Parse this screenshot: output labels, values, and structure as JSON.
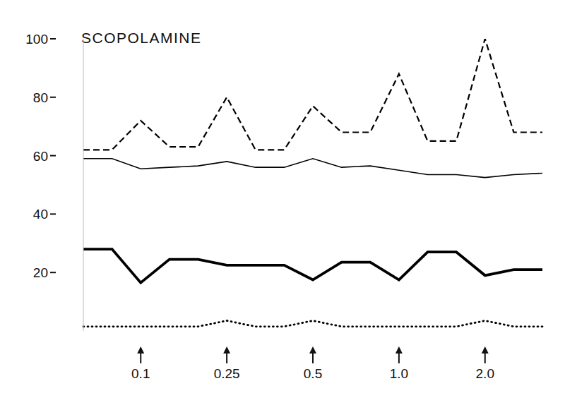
{
  "chart_data": {
    "type": "line",
    "title": "SCOPOLAMINE",
    "categories": [
      null,
      null,
      "0.1",
      null,
      null,
      "0.25",
      null,
      null,
      "0.5",
      null,
      null,
      "1.0",
      null,
      null,
      "2.0",
      null,
      null
    ],
    "series": [
      {
        "color": "#000000",
        "line_style": "dashed",
        "values": [
          62,
          62,
          72,
          63,
          63,
          80,
          62,
          62,
          77,
          68,
          68,
          88,
          65,
          65,
          100,
          68,
          68
        ]
      },
      {
        "color": "#000000",
        "line_style": "solid",
        "values": [
          59,
          59,
          55.5,
          56,
          56.5,
          58,
          56,
          56,
          59,
          56,
          56.5,
          55,
          53.5,
          53.5,
          52.5,
          53.5,
          54
        ]
      },
      {
        "color": "#000000",
        "line_style": "thick",
        "values": [
          28,
          28,
          16.5,
          24.5,
          24.5,
          22.5,
          22.5,
          22.5,
          17.5,
          23.5,
          23.5,
          17.5,
          27,
          27,
          19,
          21,
          21
        ]
      },
      {
        "color": "#000000",
        "line_style": "dotted",
        "values": [
          1.5,
          1.5,
          1.5,
          1.5,
          1.5,
          3.5,
          1.5,
          1.5,
          3.5,
          1.5,
          1.5,
          1.5,
          1.5,
          1.5,
          3.5,
          1.5,
          1.5
        ]
      }
    ],
    "ylim": [
      0,
      100
    ],
    "yticks": [
      20,
      40,
      60,
      80,
      100
    ]
  }
}
